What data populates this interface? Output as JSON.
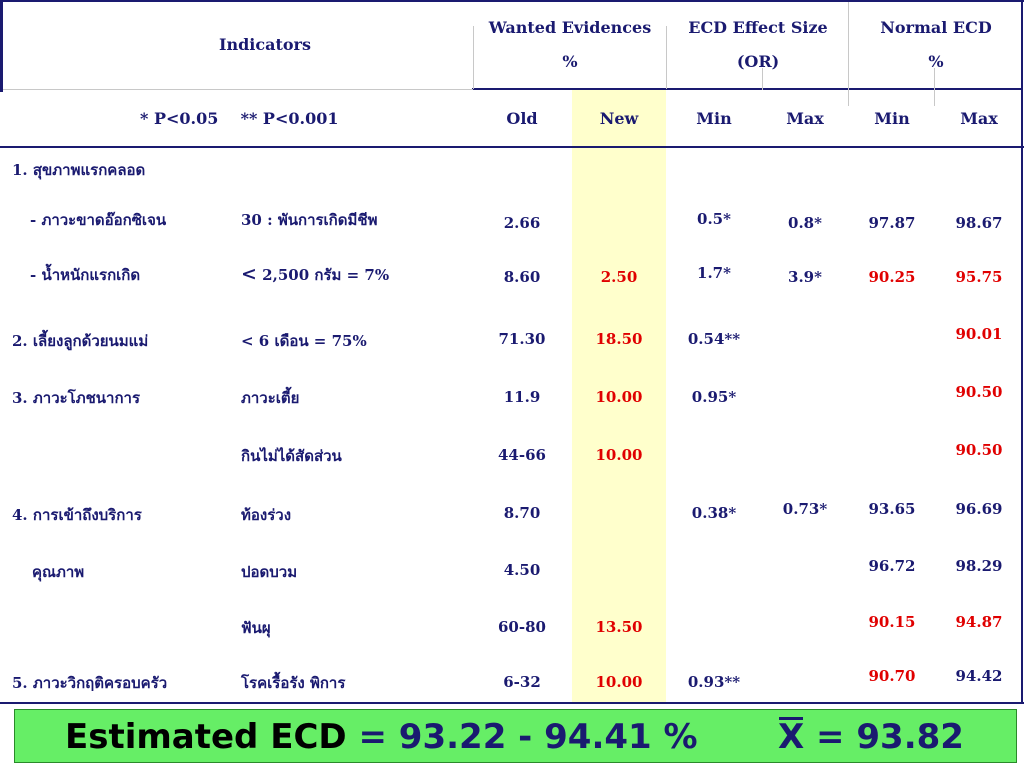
{
  "header": {
    "indicators": "Indicators",
    "wanted_title": "Wanted Evidences",
    "wanted_unit": "%",
    "effect_title": "ECD Effect Size",
    "effect_unit": "(OR)",
    "normal_title": "Normal ECD",
    "normal_unit": "%",
    "pvalues": "* P<0.05    ** P<0.001",
    "old": "Old",
    "new": "New",
    "min1": "Min",
    "max1": "Max",
    "min2": "Min",
    "max2": "Max"
  },
  "rows": {
    "r1_label": "1.  สุขภาพแรกคลอด",
    "r1a_label": "-  ภาวะขาดอ๊อกซิเจน",
    "r1a_crit": "30 : พันการเกิดมีชีพ",
    "r1a_old": "2.66",
    "r1a_min": "0.5*",
    "r1a_max": "0.8*",
    "r1a_nmin": "97.87",
    "r1a_nmax": "98.67",
    "r1b_label": "-  น้ำหนักแรกเกิด",
    "r1b_crit_lt": "<",
    "r1b_crit": "2,500 กรัม = 7%",
    "r1b_old": "8.60",
    "r1b_new": "2.50",
    "r1b_min": "1.7*",
    "r1b_max": "3.9*",
    "r1b_nmin": "90.25",
    "r1b_nmax": "95.75",
    "r2_label": "2.  เลี้ยงลูกด้วยนมแม่",
    "r2_crit": "< 6 เดือน = 75%",
    "r2_old": "71.30",
    "r2_new": "18.50",
    "r2_min": "0.54**",
    "r2_nmax": "90.01",
    "r3_label": "3.  ภาวะโภชนาการ",
    "r3a_crit": "ภาวะเตี้ย",
    "r3a_old": "11.9",
    "r3a_new": "10.00",
    "r3a_min": "0.95*",
    "r3a_nmax": "90.50",
    "r3b_crit": "กินไม่ได้สัดส่วน",
    "r3b_old": "44-66",
    "r3b_new": "10.00",
    "r3b_nmax": "90.50",
    "r4_label": "4.  การเข้าถึงบริการ",
    "r4_label2": "คุณภาพ",
    "r4a_crit": "ท้องร่วง",
    "r4a_old": "8.70",
    "r4a_min": "0.38*",
    "r4a_max": "0.73*",
    "r4a_nmin": "93.65",
    "r4a_nmax": "96.69",
    "r4b_crit": "ปอดบวม",
    "r4b_old": "4.50",
    "r4b_nmin": "96.72",
    "r4b_nmax": "98.29",
    "r4c_crit": "ฟันผุ",
    "r4c_old": "60-80",
    "r4c_new": "13.50",
    "r4c_nmin": "90.15",
    "r4c_nmax": "94.87",
    "r5_label": "5.  ภาวะวิกฤติครอบครัว",
    "r5_crit": "โรคเรื้อรัง พิการ",
    "r5_old": "6-32",
    "r5_new": "10.00",
    "r5_min": "0.93**",
    "r5_nmin": "90.70",
    "r5_nmax": "94.42"
  },
  "footer": {
    "label": "Estimated ECD",
    "eq": " = 93.22 - 94.41 %",
    "mean_symbol": "X",
    "mean_value": " = 93.82"
  },
  "colors": {
    "text": "#1a1a70",
    "highlight_red": "#e00000",
    "new_column_bg": "#ffffcc",
    "footer_bg": "#66ee66"
  }
}
